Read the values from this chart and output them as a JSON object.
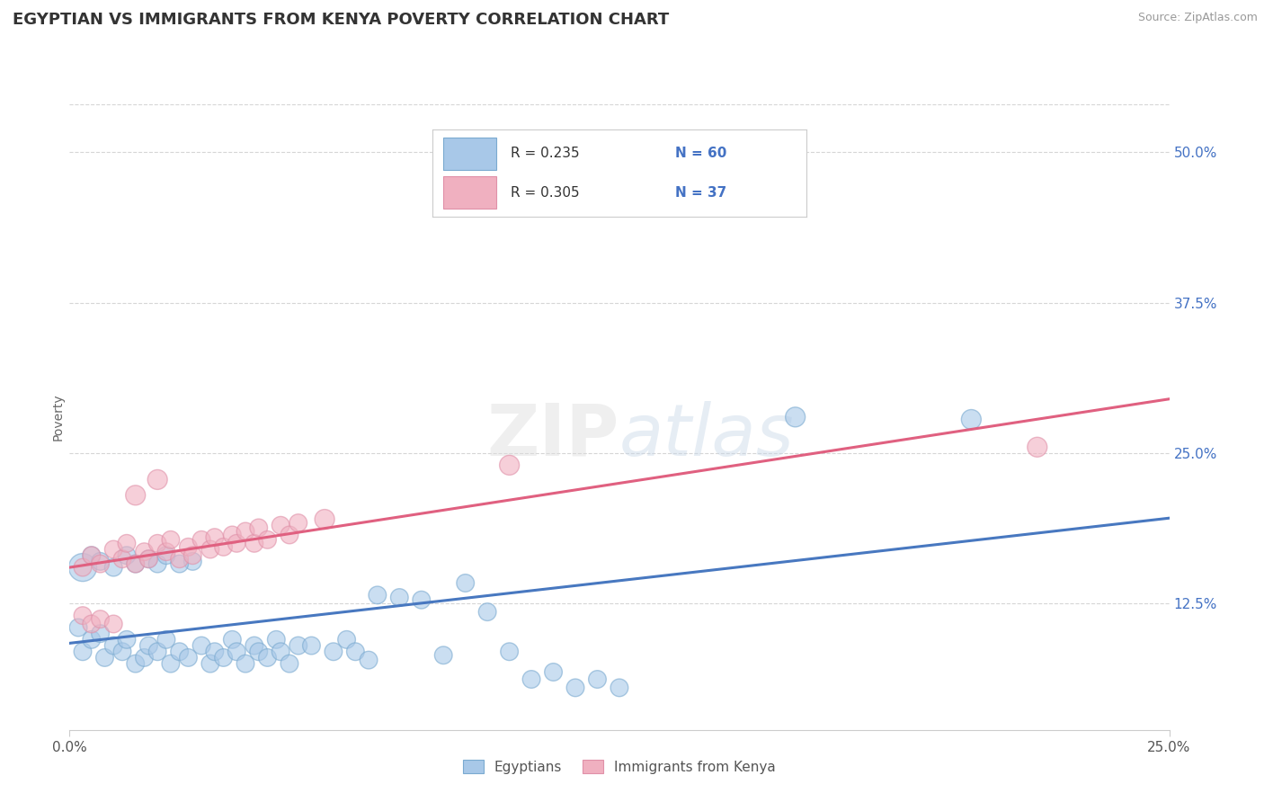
{
  "title": "EGYPTIAN VS IMMIGRANTS FROM KENYA POVERTY CORRELATION CHART",
  "source": "Source: ZipAtlas.com",
  "ylabel": "Poverty",
  "xlim": [
    0.0,
    0.25
  ],
  "ylim": [
    0.02,
    0.54
  ],
  "yticks_right": [
    0.125,
    0.25,
    0.375,
    0.5
  ],
  "yticklabels_right": [
    "12.5%",
    "25.0%",
    "37.5%",
    "50.0%"
  ],
  "legend_r1": "R = 0.235",
  "legend_n1": "N = 60",
  "legend_r2": "R = 0.305",
  "legend_n2": "N = 37",
  "color_blue": "#A8C8E8",
  "color_pink": "#F0B0C0",
  "color_blue_edge": "#7AAAD0",
  "color_pink_edge": "#E090A8",
  "color_blue_line": "#4878C0",
  "color_pink_line": "#E06080",
  "color_blue_text": "#4472C4",
  "watermark": "ZIPatlas",
  "title_fontsize": 13,
  "label_fontsize": 11,
  "blue_line_x": [
    0.0,
    0.25
  ],
  "blue_line_y": [
    0.092,
    0.196
  ],
  "pink_line_x": [
    0.0,
    0.25
  ],
  "pink_line_y": [
    0.155,
    0.295
  ],
  "legend_items": [
    "Egyptians",
    "Immigrants from Kenya"
  ],
  "bg_color": "#FFFFFF",
  "plot_bg": "#FFFFFF",
  "grid_color": "#CCCCCC",
  "blue_points": [
    [
      0.003,
      0.085
    ],
    [
      0.005,
      0.095
    ],
    [
      0.007,
      0.1
    ],
    [
      0.008,
      0.08
    ],
    [
      0.01,
      0.09
    ],
    [
      0.012,
      0.085
    ],
    [
      0.013,
      0.095
    ],
    [
      0.015,
      0.075
    ],
    [
      0.017,
      0.08
    ],
    [
      0.018,
      0.09
    ],
    [
      0.02,
      0.085
    ],
    [
      0.022,
      0.095
    ],
    [
      0.023,
      0.075
    ],
    [
      0.025,
      0.085
    ],
    [
      0.027,
      0.08
    ],
    [
      0.028,
      0.16
    ],
    [
      0.03,
      0.09
    ],
    [
      0.032,
      0.075
    ],
    [
      0.033,
      0.085
    ],
    [
      0.035,
      0.08
    ],
    [
      0.037,
      0.095
    ],
    [
      0.038,
      0.085
    ],
    [
      0.04,
      0.075
    ],
    [
      0.042,
      0.09
    ],
    [
      0.043,
      0.085
    ],
    [
      0.045,
      0.08
    ],
    [
      0.047,
      0.095
    ],
    [
      0.048,
      0.085
    ],
    [
      0.05,
      0.075
    ],
    [
      0.052,
      0.09
    ],
    [
      0.003,
      0.155
    ],
    [
      0.005,
      0.165
    ],
    [
      0.007,
      0.16
    ],
    [
      0.01,
      0.155
    ],
    [
      0.013,
      0.165
    ],
    [
      0.015,
      0.158
    ],
    [
      0.018,
      0.162
    ],
    [
      0.02,
      0.158
    ],
    [
      0.022,
      0.165
    ],
    [
      0.025,
      0.158
    ],
    [
      0.002,
      0.105
    ],
    [
      0.055,
      0.09
    ],
    [
      0.06,
      0.085
    ],
    [
      0.063,
      0.095
    ],
    [
      0.065,
      0.085
    ],
    [
      0.068,
      0.078
    ],
    [
      0.07,
      0.132
    ],
    [
      0.075,
      0.13
    ],
    [
      0.08,
      0.128
    ],
    [
      0.085,
      0.082
    ],
    [
      0.09,
      0.142
    ],
    [
      0.095,
      0.118
    ],
    [
      0.1,
      0.085
    ],
    [
      0.105,
      0.062
    ],
    [
      0.11,
      0.068
    ],
    [
      0.115,
      0.055
    ],
    [
      0.12,
      0.062
    ],
    [
      0.125,
      0.055
    ],
    [
      0.165,
      0.28
    ],
    [
      0.205,
      0.278
    ]
  ],
  "blue_sizes": [
    200,
    200,
    200,
    200,
    200,
    200,
    200,
    200,
    200,
    200,
    200,
    200,
    200,
    200,
    200,
    200,
    200,
    200,
    200,
    200,
    200,
    200,
    200,
    200,
    200,
    200,
    200,
    200,
    200,
    200,
    500,
    200,
    200,
    200,
    200,
    200,
    200,
    200,
    200,
    200,
    200,
    200,
    200,
    200,
    200,
    200,
    200,
    200,
    200,
    200,
    200,
    200,
    200,
    200,
    200,
    200,
    200,
    200,
    250,
    250
  ],
  "pink_points": [
    [
      0.003,
      0.155
    ],
    [
      0.005,
      0.165
    ],
    [
      0.007,
      0.158
    ],
    [
      0.01,
      0.17
    ],
    [
      0.012,
      0.162
    ],
    [
      0.013,
      0.175
    ],
    [
      0.015,
      0.158
    ],
    [
      0.017,
      0.168
    ],
    [
      0.018,
      0.162
    ],
    [
      0.02,
      0.175
    ],
    [
      0.022,
      0.168
    ],
    [
      0.023,
      0.178
    ],
    [
      0.025,
      0.162
    ],
    [
      0.027,
      0.172
    ],
    [
      0.028,
      0.165
    ],
    [
      0.03,
      0.178
    ],
    [
      0.032,
      0.17
    ],
    [
      0.033,
      0.18
    ],
    [
      0.035,
      0.172
    ],
    [
      0.037,
      0.182
    ],
    [
      0.038,
      0.175
    ],
    [
      0.04,
      0.185
    ],
    [
      0.042,
      0.175
    ],
    [
      0.043,
      0.188
    ],
    [
      0.045,
      0.178
    ],
    [
      0.048,
      0.19
    ],
    [
      0.05,
      0.182
    ],
    [
      0.052,
      0.192
    ],
    [
      0.015,
      0.215
    ],
    [
      0.02,
      0.228
    ],
    [
      0.003,
      0.115
    ],
    [
      0.005,
      0.108
    ],
    [
      0.007,
      0.112
    ],
    [
      0.01,
      0.108
    ],
    [
      0.058,
      0.195
    ],
    [
      0.1,
      0.24
    ],
    [
      0.22,
      0.255
    ]
  ],
  "pink_sizes": [
    200,
    200,
    200,
    200,
    200,
    200,
    200,
    200,
    200,
    200,
    200,
    200,
    200,
    200,
    200,
    200,
    200,
    200,
    200,
    200,
    200,
    200,
    200,
    200,
    200,
    200,
    200,
    200,
    250,
    250,
    200,
    200,
    200,
    200,
    250,
    250,
    250
  ]
}
